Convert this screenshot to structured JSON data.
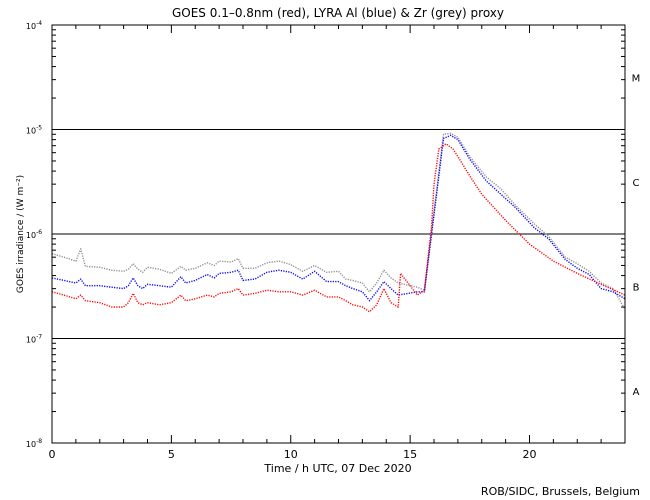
{
  "chart_data": {
    "type": "line",
    "title": "GOES 0.1–0.8nm (red), LYRA Al (blue) & Zr (grey) proxy",
    "xlabel": "Time / h UTC, 07 Dec 2020",
    "ylabel": "GOES irradiance / (W m⁻²)",
    "xlim": [
      0,
      24
    ],
    "ylim": [
      1e-08,
      0.0001
    ],
    "yscale": "log",
    "x_ticks": [
      "0",
      "5",
      "10",
      "15",
      "20"
    ],
    "y_ticks": [
      {
        "base": "10",
        "exp": "-8"
      },
      {
        "base": "10",
        "exp": "-7"
      },
      {
        "base": "10",
        "exp": "-6"
      },
      {
        "base": "10",
        "exp": "-5"
      },
      {
        "base": "10",
        "exp": "-4"
      }
    ],
    "flare_levels": [
      {
        "class": "A",
        "lower": 1e-08
      },
      {
        "class": "B",
        "lower": 1e-07
      },
      {
        "class": "C",
        "lower": 1e-06
      },
      {
        "class": "M",
        "lower": 1e-05
      }
    ],
    "threshold_lines": [
      1e-07,
      1e-06,
      1e-05
    ],
    "series": [
      {
        "name": "GOES 0.1-0.8nm",
        "color": "#ff0000",
        "x": [
          0,
          0.5,
          1,
          1.2,
          1.4,
          2,
          2.5,
          3,
          3.2,
          3.4,
          3.6,
          3.8,
          4,
          4.5,
          5,
          5.4,
          5.6,
          6,
          6.5,
          6.8,
          7,
          7.5,
          7.8,
          8,
          8.5,
          9,
          9.5,
          10,
          10.5,
          11,
          11.5,
          12,
          12.3,
          12.6,
          13,
          13.3,
          13.6,
          13.9,
          14.2,
          14.5,
          14.6,
          15,
          15.3,
          15.6,
          15.9,
          16,
          16.2,
          16.5,
          16.8,
          17,
          17.5,
          18,
          19,
          20,
          21,
          22,
          23,
          24
        ],
        "values": [
          2.8e-07,
          2.6e-07,
          2.4e-07,
          2.6e-07,
          2.3e-07,
          2.2e-07,
          2e-07,
          2e-07,
          2.2e-07,
          2.7e-07,
          2.2e-07,
          2.1e-07,
          2.2e-07,
          2.1e-07,
          2.2e-07,
          2.6e-07,
          2.3e-07,
          2.4e-07,
          2.6e-07,
          2.5e-07,
          2.7e-07,
          2.8e-07,
          3e-07,
          2.6e-07,
          2.7e-07,
          2.9e-07,
          2.8e-07,
          2.8e-07,
          2.6e-07,
          2.9e-07,
          2.5e-07,
          2.5e-07,
          2.3e-07,
          2.1e-07,
          2e-07,
          1.8e-07,
          2.1e-07,
          3e-07,
          2.2e-07,
          2e-07,
          4.2e-07,
          3.2e-07,
          2.6e-07,
          2.9e-07,
          1.2e-06,
          3e-06,
          6.5e-06,
          7.3e-06,
          6.5e-06,
          5.5e-06,
          3.6e-06,
          2.4e-06,
          1.35e-06,
          8e-07,
          5.5e-07,
          4.2e-07,
          3.3e-07,
          2.6e-07
        ]
      },
      {
        "name": "LYRA Al proxy",
        "color": "#0000ff",
        "x": [
          0,
          0.5,
          1,
          1.2,
          1.4,
          2,
          2.5,
          3,
          3.2,
          3.4,
          3.6,
          3.8,
          4,
          4.5,
          5,
          5.4,
          5.6,
          6,
          6.5,
          6.8,
          7,
          7.5,
          7.8,
          8,
          8.5,
          9,
          9.5,
          10,
          10.5,
          11,
          11.5,
          12,
          12.3,
          12.6,
          13,
          13.3,
          13.6,
          13.9,
          14.2,
          14.5,
          15.3,
          15.6,
          16.4,
          16.7,
          17,
          17.5,
          18.2,
          18.8,
          19.4,
          20.2,
          20.8,
          21.5,
          22,
          22.5,
          23,
          23.5,
          24
        ],
        "values": [
          3.8e-07,
          3.6e-07,
          3.4e-07,
          3.7e-07,
          3.2e-07,
          3.2e-07,
          3.1e-07,
          3e-07,
          3.2e-07,
          3.8e-07,
          3.2e-07,
          3e-07,
          3.3e-07,
          3.2e-07,
          3.1e-07,
          3.9e-07,
          3.4e-07,
          3.6e-07,
          4.1e-07,
          3.8e-07,
          4.2e-07,
          4.3e-07,
          4.5e-07,
          3.6e-07,
          3.7e-07,
          4.3e-07,
          4.5e-07,
          4.3e-07,
          3.7e-07,
          4.4e-07,
          3.5e-07,
          3.5e-07,
          3.2e-07,
          3e-07,
          2.8e-07,
          2.3e-07,
          2.8e-07,
          3.5e-07,
          3e-07,
          2.6e-07,
          2.8e-07,
          2.8e-07,
          8.2e-06,
          8.8e-06,
          8e-06,
          5.2e-06,
          3.2e-06,
          2.4e-06,
          1.8e-06,
          1.15e-06,
          9e-07,
          5.7e-07,
          4.7e-07,
          4.1e-07,
          3e-07,
          2.8e-07,
          2.4e-07
        ]
      },
      {
        "name": "LYRA Zr proxy",
        "color": "#8c8c8c",
        "x": [
          0,
          0.5,
          1,
          1.2,
          1.4,
          2,
          2.5,
          3,
          3.2,
          3.4,
          3.6,
          3.8,
          4,
          4.5,
          5,
          5.4,
          5.6,
          6,
          6.5,
          6.8,
          7,
          7.5,
          7.8,
          8,
          8.5,
          9,
          9.5,
          10,
          10.5,
          11,
          11.5,
          12,
          12.3,
          12.6,
          13,
          13.3,
          13.6,
          13.9,
          14.2,
          14.5,
          15.3,
          15.6,
          16.4,
          16.7,
          17,
          17.5,
          18.2,
          18.8,
          19.4,
          20.2,
          20.8,
          21.5,
          22,
          22.5,
          23,
          23.5,
          24
        ],
        "values": [
          6.5e-07,
          6e-07,
          5.5e-07,
          7.2e-07,
          4.9e-07,
          4.8e-07,
          4.5e-07,
          4.4e-07,
          4.6e-07,
          5.2e-07,
          4.6e-07,
          4.3e-07,
          4.8e-07,
          4.6e-07,
          4.2e-07,
          4.9e-07,
          4.5e-07,
          4.7e-07,
          5.3e-07,
          5e-07,
          5.5e-07,
          5.4e-07,
          5.8e-07,
          4.7e-07,
          4.7e-07,
          5.3e-07,
          5.5e-07,
          5.1e-07,
          4.4e-07,
          5e-07,
          4.3e-07,
          4.4e-07,
          3.7e-07,
          3.6e-07,
          3.4e-07,
          2.8e-07,
          3.4e-07,
          4.5e-07,
          3.8e-07,
          3.4e-07,
          3.1e-07,
          2.9e-07,
          9e-06,
          9.2e-06,
          8.4e-06,
          5.5e-06,
          3.5e-06,
          2.7e-06,
          1.9e-06,
          1.25e-06,
          9.5e-07,
          6e-07,
          5.2e-07,
          4.4e-07,
          3.4e-07,
          3e-07,
          1.9e-07
        ]
      }
    ]
  },
  "credit": "ROB/SIDC, Brussels, Belgium"
}
